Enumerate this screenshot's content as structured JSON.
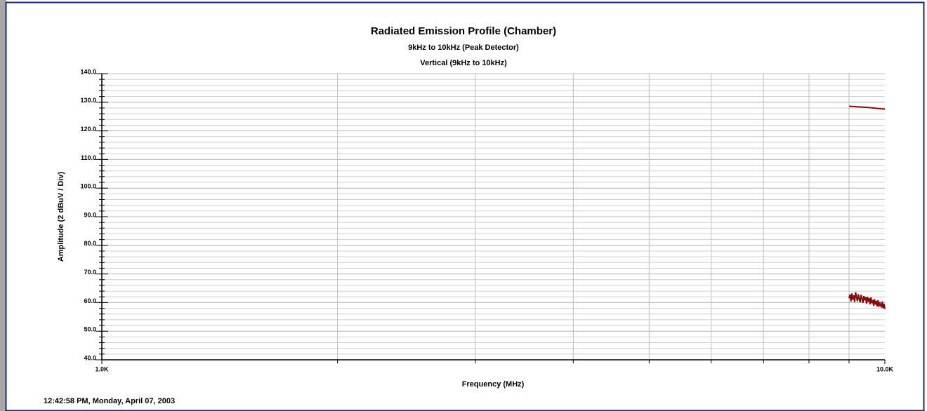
{
  "chart_data": {
    "type": "line",
    "title": "Radiated Emission Profile (Chamber)",
    "subtitle": "9kHz to 10kHz (Peak Detector)",
    "subtitle2": "Vertical (9kHz to 10kHz)",
    "ylabel": "Amplitude (2 dBuV / Div)",
    "xlabel": "Frequency (MHz)",
    "footer": "12:42:58 PM, Monday, April 07, 2003",
    "xscale": "log",
    "xlim": [
      1000,
      10000
    ],
    "xticks": [
      {
        "value": 1000,
        "label": "1.0K"
      },
      {
        "value": 10000,
        "label": "10.0K"
      }
    ],
    "x_minor_ticks": [
      2000,
      3000,
      4000,
      5000,
      6000,
      7000,
      8000,
      9000
    ],
    "ylim": [
      40,
      140
    ],
    "yticks": [
      {
        "value": 40,
        "label": "40.0"
      },
      {
        "value": 50,
        "label": "50.0"
      },
      {
        "value": 60,
        "label": "60.0"
      },
      {
        "value": 70,
        "label": "70.0"
      },
      {
        "value": 80,
        "label": "80.0"
      },
      {
        "value": 90,
        "label": "90.0"
      },
      {
        "value": 100,
        "label": "100.0"
      },
      {
        "value": 110,
        "label": "110.0"
      },
      {
        "value": 120,
        "label": "120.0"
      },
      {
        "value": 130,
        "label": "130.0"
      },
      {
        "value": 140,
        "label": "140.0"
      }
    ],
    "y_minor_step": 2,
    "grid": true,
    "series": [
      {
        "color": "#8b0a0a",
        "x": [
          9000,
          9250,
          9500,
          9750,
          10000
        ],
        "values": [
          128.6,
          128.4,
          128.2,
          127.9,
          127.6
        ]
      },
      {
        "color": "#8b0a0a",
        "x": [
          9000,
          9025,
          9050,
          9075,
          9100,
          9125,
          9150,
          9175,
          9200,
          9225,
          9250,
          9275,
          9300,
          9325,
          9350,
          9375,
          9400,
          9425,
          9450,
          9475,
          9500,
          9525,
          9550,
          9575,
          9600,
          9625,
          9650,
          9675,
          9700,
          9725,
          9750,
          9775,
          9800,
          9825,
          9850,
          9875,
          9900,
          9925,
          9950,
          9975,
          10000
        ],
        "values": [
          61.5,
          62.8,
          60.4,
          63.2,
          61.0,
          62.5,
          60.2,
          63.6,
          61.8,
          60.5,
          62.9,
          61.2,
          60.1,
          62.7,
          61.4,
          59.9,
          62.3,
          60.8,
          61.9,
          59.6,
          62.0,
          60.3,
          61.6,
          59.4,
          61.8,
          59.8,
          60.9,
          58.9,
          61.2,
          59.3,
          60.6,
          58.7,
          60.8,
          58.5,
          60.2,
          59.1,
          58.3,
          60.4,
          58.0,
          59.6,
          57.8
        ]
      }
    ]
  }
}
